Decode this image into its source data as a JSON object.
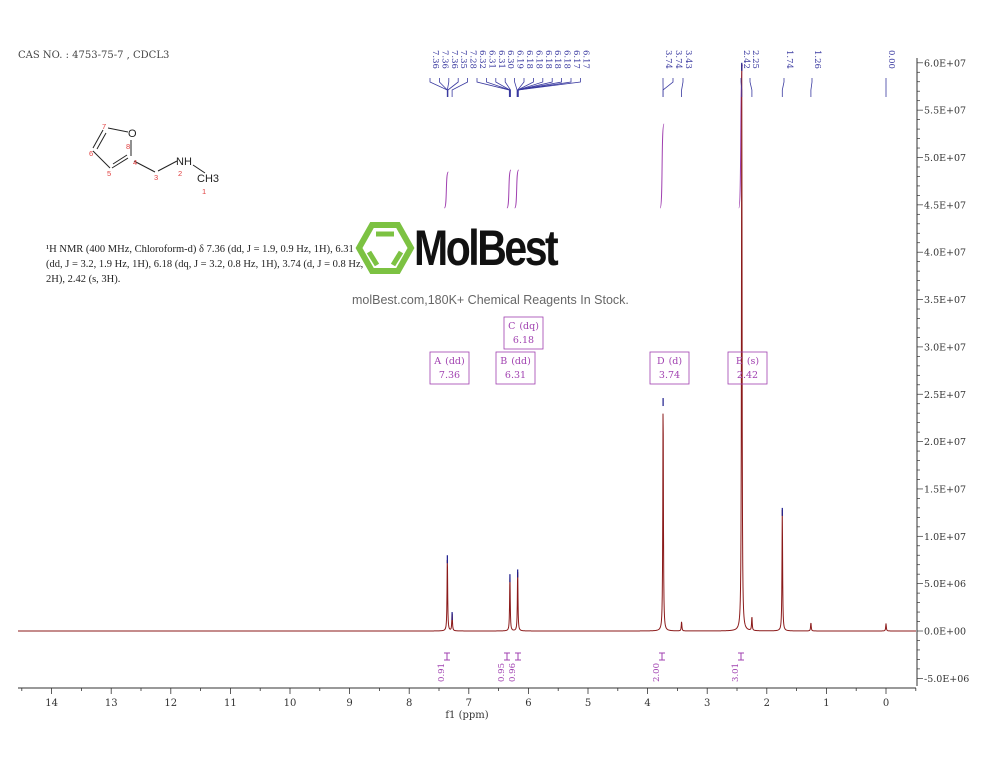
{
  "header": {
    "cas": "CAS NO. : 4753-75-7 , CDCL3",
    "description": "¹H NMR (400 MHz, Chloroform-d) δ 7.36 (dd, J = 1.9, 0.9 Hz, 1H), 6.31 (dd, J = 3.2, 1.9 Hz, 1H), 6.18 (dq, J = 3.2, 0.8 Hz, 1H), 3.74 (d, J = 0.8 Hz, 2H), 2.42 (s, 3H)."
  },
  "molecule": {
    "atoms": [
      "O",
      "NH",
      "CH3"
    ],
    "numbers": [
      "1",
      "2",
      "3",
      "4",
      "5",
      "6",
      "7",
      "8"
    ]
  },
  "watermark": {
    "logo": "MolBest",
    "subtitle": "molBest.com,180K+ Chemical Reagents In Stock."
  },
  "chart_data": {
    "type": "line",
    "xlabel": "f1 (ppm)",
    "ylabel": "",
    "xlim": [
      14.6,
      -0.5
    ],
    "x_reversed": true,
    "ylim": [
      -6500000,
      61000000
    ],
    "x_ticks": [
      "14",
      "13",
      "12",
      "11",
      "10",
      "9",
      "8",
      "7",
      "6",
      "5",
      "4",
      "3",
      "2",
      "1",
      "0"
    ],
    "y_ticks": [
      {
        "value": 60000000,
        "label": "6.0E+07"
      },
      {
        "value": 55000000,
        "label": "5.5E+07"
      },
      {
        "value": 50000000,
        "label": "5.0E+07"
      },
      {
        "value": 45000000,
        "label": "4.5E+07"
      },
      {
        "value": 40000000,
        "label": "4.0E+07"
      },
      {
        "value": 35000000,
        "label": "3.5E+07"
      },
      {
        "value": 30000000,
        "label": "3.0E+07"
      },
      {
        "value": 25000000,
        "label": "2.5E+07"
      },
      {
        "value": 20000000,
        "label": "2.0E+07"
      },
      {
        "value": 15000000,
        "label": "1.5E+07"
      },
      {
        "value": 10000000,
        "label": "1.0E+07"
      },
      {
        "value": 5000000,
        "label": "5.0E+06"
      },
      {
        "value": 0,
        "label": "0.0E+00"
      },
      {
        "value": -5000000,
        "label": "-5.0E+06"
      }
    ],
    "peaks": [
      {
        "ppm": 7.36,
        "intensity": 8000000
      },
      {
        "ppm": 7.28,
        "intensity": 2000000
      },
      {
        "ppm": 6.31,
        "intensity": 6000000
      },
      {
        "ppm": 6.18,
        "intensity": 6500000
      },
      {
        "ppm": 3.74,
        "intensity": 24600000
      },
      {
        "ppm": 3.43,
        "intensity": 1000000
      },
      {
        "ppm": 2.42,
        "intensity": 60000000
      },
      {
        "ppm": 2.25,
        "intensity": 1500000
      },
      {
        "ppm": 1.74,
        "intensity": 13000000
      },
      {
        "ppm": 1.26,
        "intensity": 900000
      },
      {
        "ppm": 0.0,
        "intensity": 800000
      }
    ],
    "peak_labels": [
      "7.36",
      "7.36",
      "7.36",
      "7.35",
      "7.28",
      "6.32",
      "6.31",
      "6.31",
      "6.30",
      "6.19",
      "6.18",
      "6.18",
      "6.18",
      "6.18",
      "6.18",
      "6.17",
      "6.17",
      "3.74",
      "3.74",
      "3.43",
      "2.42",
      "2.25",
      "1.74",
      "1.26",
      "0.00"
    ],
    "multiplets": [
      {
        "name": "A",
        "type": "(dd)",
        "shift": "7.36",
        "ppm": 7.36
      },
      {
        "name": "B",
        "type": "(dd)",
        "shift": "6.31",
        "ppm": 6.31
      },
      {
        "name": "C",
        "type": "(dq)",
        "shift": "6.18",
        "ppm": 6.18
      },
      {
        "name": "D",
        "type": "(d)",
        "shift": "3.74",
        "ppm": 3.74
      },
      {
        "name": "E",
        "type": "(s)",
        "shift": "2.42",
        "ppm": 2.42
      }
    ],
    "integrals": [
      {
        "ppm": 7.36,
        "value": "0.91"
      },
      {
        "ppm": 6.31,
        "value": "0.95"
      },
      {
        "ppm": 6.18,
        "value": "0.96"
      },
      {
        "ppm": 3.74,
        "value": "2.00"
      },
      {
        "ppm": 2.42,
        "value": "3.01"
      }
    ],
    "colors": {
      "spectrum": "#8b1a1a",
      "peak_tip": "#1a1a8b",
      "integral": "#a040b0",
      "labels": "#3a3aa0",
      "axis": "#333333"
    }
  }
}
